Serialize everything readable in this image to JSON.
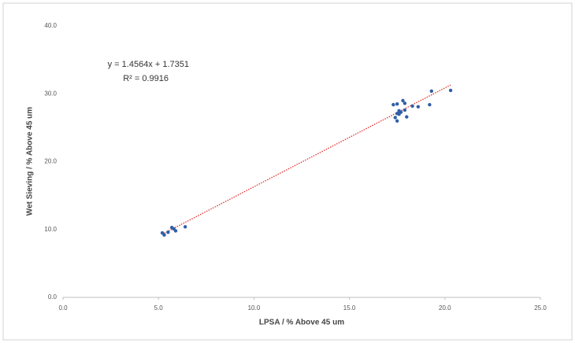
{
  "chart_data": {
    "type": "scatter",
    "x_label": "LPSA / % Above 45 um",
    "y_label": "Wet Sieving / % Above 45 um",
    "series": [
      {
        "color": "#2e5fa8",
        "x": [
          5.2,
          5.3,
          5.5,
          5.7,
          5.8,
          5.9,
          6.4,
          17.3,
          17.5,
          17.6,
          17.4,
          17.5,
          17.7,
          17.8,
          17.9,
          17.6,
          17.9,
          18.0,
          18.3,
          18.6,
          19.2,
          19.3,
          20.3,
          17.5
        ],
        "values": [
          9.5,
          9.2,
          9.6,
          10.3,
          10.1,
          9.8,
          10.4,
          28.4,
          28.5,
          27.0,
          26.5,
          26.0,
          27.3,
          29.0,
          28.6,
          27.5,
          27.6,
          26.6,
          28.2,
          28.1,
          28.4,
          30.4,
          30.5,
          27.1
        ]
      }
    ],
    "trendline": {
      "equation": "y = 1.4564x + 1.7351",
      "r_squared": "R² = 0.9916",
      "slope": 1.4564,
      "intercept": 1.7351,
      "color": "#e03030"
    },
    "xlim": [
      0,
      25
    ],
    "xticks": [
      {
        "value": 0,
        "label": "0.0"
      },
      {
        "value": 5,
        "label": "5.0"
      },
      {
        "value": 10,
        "label": "10.0"
      },
      {
        "value": 15,
        "label": "15.0"
      },
      {
        "value": 20,
        "label": "20.0"
      },
      {
        "value": 25,
        "label": "25.0"
      }
    ],
    "ylim": [
      0,
      40
    ],
    "yticks": [
      {
        "value": 0,
        "label": "0.0"
      },
      {
        "value": 10,
        "label": "10.0"
      },
      {
        "value": 20,
        "label": "20.0"
      },
      {
        "value": 30,
        "label": "30.0"
      },
      {
        "value": 40,
        "label": "40.0"
      }
    ]
  }
}
